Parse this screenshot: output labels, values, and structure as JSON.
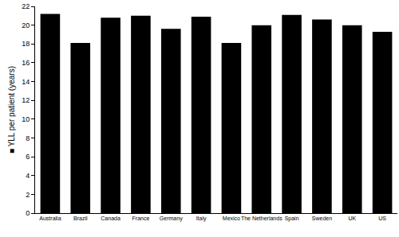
{
  "chart_data": {
    "type": "bar",
    "y_label": "■ YLL per patient (years)",
    "categories": [
      "Australia",
      "Brazil",
      "Canada",
      "France",
      "Germany",
      "Italy",
      "Mexico",
      "The Netherlands",
      "Spain",
      "Sweden",
      "UK",
      "US"
    ],
    "values": [
      21.2,
      18.1,
      20.8,
      21.0,
      19.6,
      20.9,
      18.1,
      20.0,
      21.1,
      20.6,
      20.0,
      19.3
    ],
    "color": "#000000",
    "ylim": [
      0,
      22
    ],
    "yticks": [
      0,
      2,
      4,
      6,
      8,
      10,
      12,
      14,
      16,
      18,
      20,
      22
    ],
    "grid": false
  }
}
